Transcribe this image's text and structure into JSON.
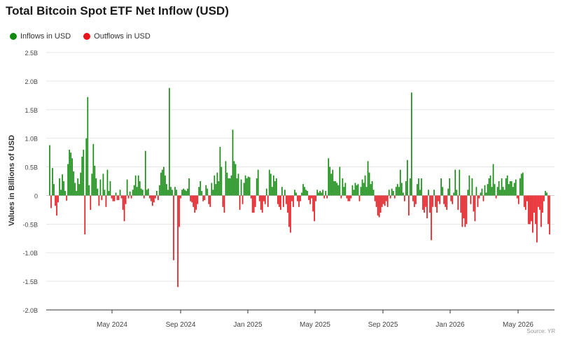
{
  "title": "Total Bitcoin Spot ETF Net Inflow (USD)",
  "source": "Source: YR",
  "colors": {
    "inflow": "#118a0f",
    "outflow": "#e8141b",
    "grid": "#e6e6e6",
    "axis": "#333333"
  },
  "chart_data": {
    "type": "bar",
    "title": "Total Bitcoin Spot ETF Net Inflow (USD)",
    "ylabel": "Values in Billions of USD",
    "xlabel": "",
    "ylim": [
      -2.0,
      2.5
    ],
    "y_ticks": [
      "2.5B",
      "2.0B",
      "1.5B",
      "1.0B",
      "0.5B",
      "0",
      "-0.5B",
      "-1.0B",
      "-1.5B",
      "-2.0B"
    ],
    "x_ticks": [
      "May 2024",
      "Sep 2024",
      "Jan 2025",
      "May 2025",
      "Sep 2025",
      "Jan 2026",
      "May 2026"
    ],
    "grid": true,
    "legend_position": "top-left",
    "series": [
      {
        "name": "Inflows in USD",
        "color": "#118a0f"
      },
      {
        "name": "Outflows in USD",
        "color": "#e8141b"
      }
    ],
    "values": [
      0.88,
      -0.22,
      0.48,
      0.2,
      -0.18,
      -0.35,
      -0.12,
      0.3,
      0.1,
      0.37,
      0.25,
      0.08,
      -0.09,
      0.55,
      0.8,
      0.75,
      0.65,
      0.42,
      0.22,
      0.08,
      0.3,
      0.2,
      0.4,
      0.68,
      0.8,
      -0.68,
      1.0,
      1.72,
      0.18,
      -0.25,
      0.38,
      0.9,
      0.52,
      0.3,
      0.12,
      -0.18,
      0.28,
      -0.08,
      0.38,
      0.1,
      -0.2,
      0.45,
      0.08,
      0.25,
      -0.05,
      -0.1,
      -0.1,
      0.05,
      -0.08,
      -0.08,
      0.1,
      -0.05,
      -0.25,
      -0.45,
      -0.15,
      0.28,
      -0.05,
      0.07,
      -0.05,
      0.1,
      0.18,
      0.35,
      0.15,
      0.35,
      0.25,
      0.12,
      0.1,
      -0.05,
      0.78,
      0.1,
      0.12,
      -0.05,
      -0.1,
      -0.18,
      -0.12,
      -0.05,
      0.08,
      -0.08,
      0.18,
      0.4,
      0.45,
      0.5,
      0.35,
      0.2,
      0.1,
      1.88,
      0.15,
      0.1,
      -1.13,
      0.15,
      0.1,
      -1.6,
      -0.55,
      -0.05,
      0.1,
      0.12,
      0.1,
      0.08,
      0.12,
      0.3,
      -0.1,
      -0.12,
      -0.2,
      -0.3,
      -0.25,
      -0.15,
      0.15,
      0.25,
      0.08,
      -0.1,
      -0.08,
      0.18,
      0.12,
      -0.15,
      -0.2,
      0.22,
      0.1,
      0.35,
      0.2,
      0.4,
      0.25,
      0.85,
      0.5,
      -0.2,
      -0.3,
      0.6,
      0.4,
      0.3,
      0.3,
      0.35,
      1.15,
      0.6,
      0.55,
      0.3,
      0.38,
      -0.25,
      0.28,
      -0.15,
      0.22,
      0.35,
      0.3,
      0.33,
      0.32,
      -0.05,
      -0.3,
      -0.3,
      -0.2,
      0.3,
      0.45,
      -0.1,
      -0.25,
      -0.3,
      -0.1,
      -0.15,
      0.12,
      -0.2,
      0.45,
      0.38,
      0.15,
      0.35,
      0.25,
      0.3,
      -0.15,
      -0.2,
      -0.25,
      0.15,
      -0.2,
      0.1,
      -0.15,
      -0.3,
      -0.55,
      -0.65,
      -0.1,
      -0.2,
      0.1,
      0.05,
      -0.1,
      -0.2,
      -0.1,
      0.05,
      0.2,
      0.15,
      0.1,
      0.08,
      -0.08,
      -0.15,
      -0.05,
      -0.28,
      -0.45,
      -0.1,
      0.1,
      0.05,
      0.08,
      0.05,
      0.1,
      -0.05,
      0.08,
      -0.05,
      0.65,
      0.5,
      0.38,
      0.45,
      0.25,
      0.25,
      0.22,
      0.18,
      0.5,
      -0.05,
      0.3,
      0.15,
      0.22,
      -0.05,
      -0.1,
      -0.1,
      -0.05,
      0.18,
      0.1,
      0.22,
      0.18,
      0.2,
      -0.1,
      0.15,
      0.28,
      0.22,
      0.35,
      0.15,
      0.6,
      0.4,
      0.2,
      0.25,
      0.1,
      -0.1,
      -0.2,
      -0.35,
      -0.38,
      -0.3,
      -0.2,
      -0.15,
      -0.18,
      -0.1,
      -0.2,
      0.1,
      -0.05,
      0.12,
      0.08,
      -0.05,
      0.15,
      0.2,
      0.15,
      0.45,
      0.22,
      0.05,
      -0.1,
      0.25,
      0.62,
      -0.35,
      0.3,
      1.8,
      -0.1,
      -0.2,
      -0.15,
      0.2,
      0.3,
      0.1,
      0.3,
      -0.25,
      -0.3,
      -0.2,
      -0.4,
      0.1,
      -0.3,
      -0.78,
      -0.2,
      0.1,
      -0.2,
      -0.3,
      -0.1,
      -0.15,
      0.3,
      0.15,
      -0.15,
      -0.2,
      -0.25,
      0.12,
      0.3,
      -0.1,
      -0.15,
      0.05,
      0.45,
      0.1,
      -0.25,
      0.45,
      -0.3,
      -0.55,
      -0.4,
      -0.55,
      -0.5,
      0.1,
      0.35,
      -0.15,
      0.3,
      -0.28,
      -0.45,
      0.15,
      -0.2,
      -0.05,
      0.05,
      0.12,
      -0.1,
      0.18,
      0.05,
      0.2,
      0.3,
      0.35,
      0.15,
      0.55,
      0.2,
      -0.05,
      0.15,
      0.25,
      0.1,
      0.3,
      0.15,
      0.1,
      0.3,
      0.35,
      0.2,
      0.25,
      0.25,
      0.15,
      0.22,
      0.28,
      -0.05,
      -0.15,
      0.3,
      0.38,
      0.4,
      -0.2,
      -0.25,
      -0.1,
      -0.5,
      -0.5,
      -0.45,
      -0.65,
      -0.3,
      -0.5,
      -0.82,
      -0.2,
      -0.25,
      -0.55,
      -0.3,
      -0.1,
      0.08,
      0.05,
      -0.5,
      -0.68
    ]
  },
  "legend": {
    "inflows_label": "Inflows in USD",
    "outflows_label": "Outflows in USD"
  }
}
